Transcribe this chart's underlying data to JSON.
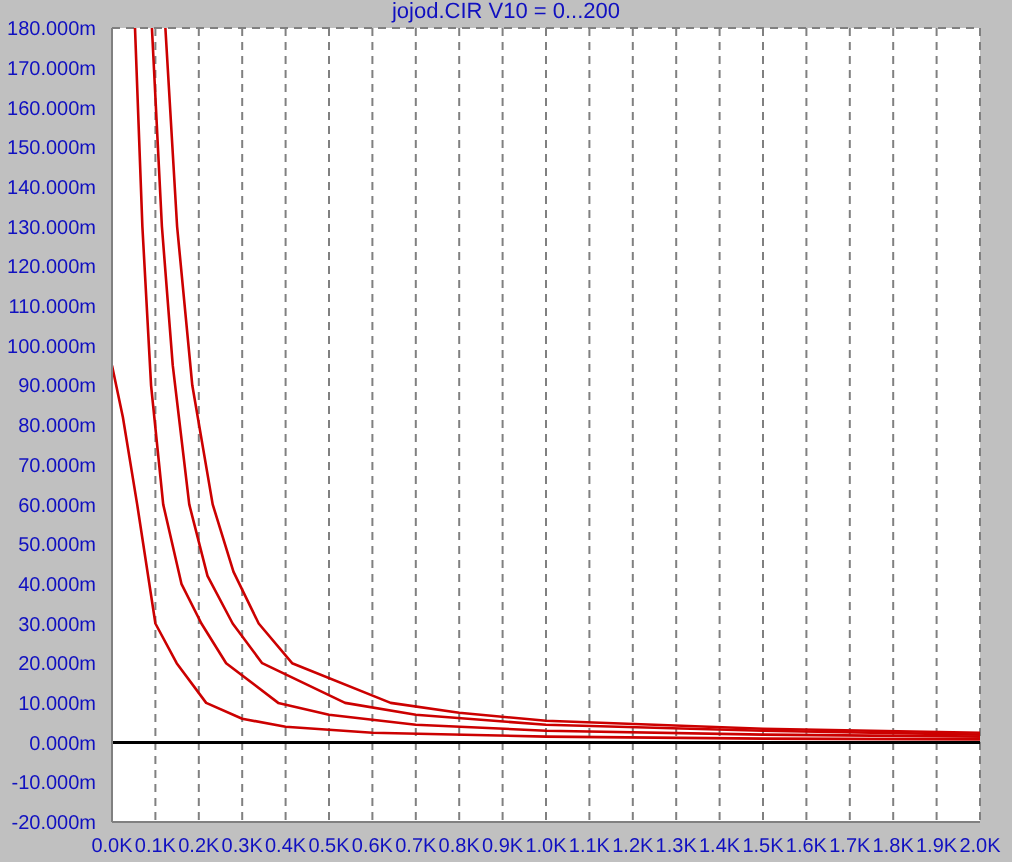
{
  "chart_data": {
    "type": "line",
    "title": "jojod.CIR V10 = 0...200",
    "xlim": [
      0,
      2000
    ],
    "xticks": [
      {
        "value": 0,
        "label": "0.0K"
      },
      {
        "value": 100,
        "label": "0.1K"
      },
      {
        "value": 200,
        "label": "0.2K"
      },
      {
        "value": 300,
        "label": "0.3K"
      },
      {
        "value": 400,
        "label": "0.4K"
      },
      {
        "value": 500,
        "label": "0.5K"
      },
      {
        "value": 600,
        "label": "0.6K"
      },
      {
        "value": 700,
        "label": "0.7K"
      },
      {
        "value": 800,
        "label": "0.8K"
      },
      {
        "value": 900,
        "label": "0.9K"
      },
      {
        "value": 1000,
        "label": "1.0K"
      },
      {
        "value": 1100,
        "label": "1.1K"
      },
      {
        "value": 1200,
        "label": "1.2K"
      },
      {
        "value": 1300,
        "label": "1.3K"
      },
      {
        "value": 1400,
        "label": "1.4K"
      },
      {
        "value": 1500,
        "label": "1.5K"
      },
      {
        "value": 1600,
        "label": "1.6K"
      },
      {
        "value": 1700,
        "label": "1.7K"
      },
      {
        "value": 1800,
        "label": "1.8K"
      },
      {
        "value": 1900,
        "label": "1.9K"
      },
      {
        "value": 2000,
        "label": "2.0K"
      }
    ],
    "ylim": [
      -20,
      180
    ],
    "yticks": [
      {
        "value": -20,
        "label": "-20.000m"
      },
      {
        "value": -10,
        "label": "-10.000m"
      },
      {
        "value": 0,
        "label": "0.000m"
      },
      {
        "value": 10,
        "label": "10.000m"
      },
      {
        "value": 20,
        "label": "20.000m"
      },
      {
        "value": 30,
        "label": "30.000m"
      },
      {
        "value": 40,
        "label": "40.000m"
      },
      {
        "value": 50,
        "label": "50.000m"
      },
      {
        "value": 60,
        "label": "60.000m"
      },
      {
        "value": 70,
        "label": "70.000m"
      },
      {
        "value": 80,
        "label": "80.000m"
      },
      {
        "value": 90,
        "label": "90.000m"
      },
      {
        "value": 100,
        "label": "100.000m"
      },
      {
        "value": 110,
        "label": "110.000m"
      },
      {
        "value": 120,
        "label": "120.000m"
      },
      {
        "value": 130,
        "label": "130.000m"
      },
      {
        "value": 140,
        "label": "140.000m"
      },
      {
        "value": 150,
        "label": "150.000m"
      },
      {
        "value": 160,
        "label": "160.000m"
      },
      {
        "value": 170,
        "label": "170.000m"
      },
      {
        "value": 180,
        "label": "180.000m"
      }
    ],
    "grid": true,
    "legend": false,
    "marker": "none",
    "line_style": "solid",
    "ref_lines": [
      {
        "axis": "y",
        "value": 0,
        "color": "#000000"
      }
    ],
    "series": [
      {
        "color": "#cc0000",
        "x": [
          0,
          25,
          58,
          100,
          149,
          217,
          300,
          400,
          600,
          1000,
          1500,
          2000
        ],
        "values": [
          95,
          82,
          60,
          30,
          20,
          10,
          6,
          4,
          2.5,
          1.5,
          1,
          0.8
        ]
      },
      {
        "color": "#cc0000",
        "x": [
          53,
          70,
          90,
          118,
          160,
          206,
          263,
          383,
          500,
          700,
          1000,
          1500,
          2000
        ],
        "values": [
          180,
          130,
          90,
          60,
          40,
          30,
          20,
          10,
          7,
          4.5,
          3,
          2,
          1.5
        ]
      },
      {
        "color": "#cc0000",
        "x": [
          92,
          115,
          140,
          178,
          220,
          278,
          346,
          537,
          700,
          1000,
          1500,
          2000
        ],
        "values": [
          180,
          130,
          95,
          60,
          42,
          30,
          20,
          10,
          7,
          4.5,
          3,
          2
        ]
      },
      {
        "color": "#cc0000",
        "x": [
          123,
          150,
          185,
          232,
          280,
          338,
          415,
          642,
          800,
          1000,
          1500,
          2000
        ],
        "values": [
          180,
          130,
          90,
          60,
          43,
          30,
          20,
          10,
          7.5,
          5.5,
          3.5,
          2.5
        ]
      }
    ]
  }
}
